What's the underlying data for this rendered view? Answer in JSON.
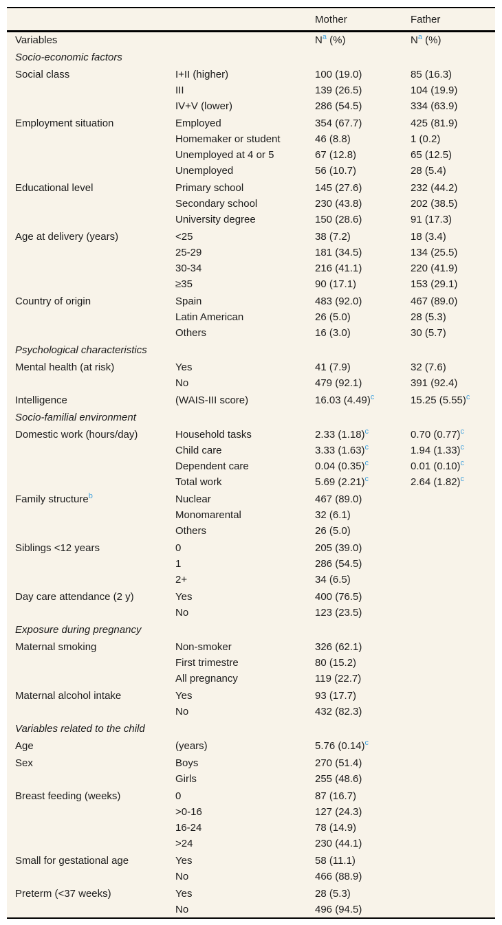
{
  "colors": {
    "table_background": "#f8f3e9",
    "rule": "#000000",
    "text": "#1b1b1b",
    "footnote_link_blue": "#45a3dd"
  },
  "table": {
    "columns": {
      "mother": "Mother",
      "father": "Father"
    },
    "subheader": {
      "variables": "Variables",
      "n": "N",
      "n_sup": "a",
      "pct": "(%)"
    },
    "rows": [
      {
        "type": "section",
        "label": "Socio-economic factors"
      },
      {
        "type": "data",
        "label": "Social class",
        "category": "I+II (higher)",
        "mother": "100 (19.0)",
        "father": "85 (16.3)"
      },
      {
        "type": "data",
        "label": "",
        "category": "III",
        "mother": "139 (26.5)",
        "father": "104 (19.9)"
      },
      {
        "type": "data",
        "label": "",
        "category": "IV+V (lower)",
        "mother": "286 (54.5)",
        "father": "334 (63.9)"
      },
      {
        "type": "data",
        "label": "Employment situation",
        "category": "Employed",
        "mother": "354 (67.7)",
        "father": "425 (81.9)"
      },
      {
        "type": "data",
        "label": "",
        "category": "Homemaker or student",
        "mother": "46 (8.8)",
        "father": "1 (0.2)"
      },
      {
        "type": "data",
        "label": "",
        "category": "Unemployed at 4 or 5",
        "mother": "67 (12.8)",
        "father": "65 (12.5)"
      },
      {
        "type": "data",
        "label": "",
        "category": "Unemployed",
        "mother": "56 (10.7)",
        "father": "28 (5.4)"
      },
      {
        "type": "data",
        "label": "Educational level",
        "category": "Primary school",
        "mother": "145 (27.6)",
        "father": "232 (44.2)"
      },
      {
        "type": "data",
        "label": "",
        "category": "Secondary school",
        "mother": "230 (43.8)",
        "father": "202 (38.5)"
      },
      {
        "type": "data",
        "label": "",
        "category": "University degree",
        "mother": "150 (28.6)",
        "father": "91 (17.3)"
      },
      {
        "type": "data",
        "label": "Age at delivery (years)",
        "category": "<25",
        "mother": "38 (7.2)",
        "father": "18 (3.4)"
      },
      {
        "type": "data",
        "label": "",
        "category": "25-29",
        "mother": "181 (34.5)",
        "father": "134 (25.5)"
      },
      {
        "type": "data",
        "label": "",
        "category": "30-34",
        "mother": "216 (41.1)",
        "father": "220 (41.9)"
      },
      {
        "type": "data",
        "label": "",
        "category": "≥35",
        "mother": "90 (17.1)",
        "father": "153 (29.1)"
      },
      {
        "type": "data",
        "label": "Country of origin",
        "category": "Spain",
        "mother": "483 (92.0)",
        "father": "467 (89.0)"
      },
      {
        "type": "data",
        "label": "",
        "category": "Latin American",
        "mother": "26 (5.0)",
        "father": "28 (5.3)"
      },
      {
        "type": "data",
        "label": "",
        "category": "Others",
        "mother": "16 (3.0)",
        "father": "30 (5.7)"
      },
      {
        "type": "section",
        "label": "Psychological characteristics"
      },
      {
        "type": "data",
        "label": "Mental health (at risk)",
        "category": "Yes",
        "mother": "41 (7.9)",
        "father": "32 (7.6)"
      },
      {
        "type": "data",
        "label": "",
        "category": "No",
        "mother": "479 (92.1)",
        "father": "391 (92.4)"
      },
      {
        "type": "data",
        "label": "Intelligence",
        "category": "(WAIS-III score)",
        "mother": "16.03 (4.49)",
        "mother_sup": "c",
        "father": "15.25 (5.55)",
        "father_sup": "c"
      },
      {
        "type": "section",
        "label": "Socio-familial environment"
      },
      {
        "type": "data",
        "label": "Domestic work (hours/day)",
        "category": "Household tasks",
        "mother": "2.33 (1.18)",
        "mother_sup": "c",
        "father": "0.70 (0.77)",
        "father_sup": "c"
      },
      {
        "type": "data",
        "label": "",
        "category": "Child care",
        "mother": "3.33 (1.63)",
        "mother_sup": "c",
        "father": "1.94 (1.33)",
        "father_sup": "c"
      },
      {
        "type": "data",
        "label": "",
        "category": "Dependent care",
        "mother": "0.04 (0.35)",
        "mother_sup": "c",
        "father": "0.01 (0.10)",
        "father_sup": "c"
      },
      {
        "type": "data",
        "label": "",
        "category": "Total work",
        "mother": "5.69 (2.21)",
        "mother_sup": "c",
        "father": "2.64 (1.82)",
        "father_sup": "c"
      },
      {
        "type": "data",
        "label": "Family structure",
        "label_sup": "b",
        "category": "Nuclear",
        "mother": "467 (89.0)",
        "father": ""
      },
      {
        "type": "data",
        "label": "",
        "category": "Monomarental",
        "mother": "32 (6.1)",
        "father": ""
      },
      {
        "type": "data",
        "label": "",
        "category": "Others",
        "mother": "26 (5.0)",
        "father": ""
      },
      {
        "type": "data",
        "label": "Siblings <12 years",
        "category": "0",
        "mother": "205 (39.0)",
        "father": ""
      },
      {
        "type": "data",
        "label": "",
        "category": "1",
        "mother": "286 (54.5)",
        "father": ""
      },
      {
        "type": "data",
        "label": "",
        "category": "2+",
        "mother": "34 (6.5)",
        "father": ""
      },
      {
        "type": "data",
        "label": "Day care attendance (2 y)",
        "category": "Yes",
        "mother": "400 (76.5)",
        "father": ""
      },
      {
        "type": "data",
        "label": "",
        "category": "No",
        "mother": "123 (23.5)",
        "father": ""
      },
      {
        "type": "section",
        "label": "Exposure during pregnancy"
      },
      {
        "type": "data",
        "label": "Maternal smoking",
        "category": "Non-smoker",
        "mother": "326 (62.1)",
        "father": ""
      },
      {
        "type": "data",
        "label": "",
        "category": "First trimestre",
        "mother": "80 (15.2)",
        "father": ""
      },
      {
        "type": "data",
        "label": "",
        "category": "All pregnancy",
        "mother": "119 (22.7)",
        "father": ""
      },
      {
        "type": "data",
        "label": "Maternal alcohol intake",
        "category": "Yes",
        "mother": "93 (17.7)",
        "father": ""
      },
      {
        "type": "data",
        "label": "",
        "category": "No",
        "mother": "432 (82.3)",
        "father": ""
      },
      {
        "type": "section",
        "label": "Variables related to the child"
      },
      {
        "type": "data",
        "label": "Age",
        "category": "(years)",
        "mother": "5.76 (0.14)",
        "mother_sup": "c",
        "father": ""
      },
      {
        "type": "data",
        "label": "Sex",
        "category": "Boys",
        "mother": "270 (51.4)",
        "father": ""
      },
      {
        "type": "data",
        "label": "",
        "category": "Girls",
        "mother": "255 (48.6)",
        "father": ""
      },
      {
        "type": "data",
        "label": "Breast feeding (weeks)",
        "category": "0",
        "mother": "87 (16.7)",
        "father": ""
      },
      {
        "type": "data",
        "label": "",
        "category": ">0-16",
        "mother": "127 (24.3)",
        "father": ""
      },
      {
        "type": "data",
        "label": "",
        "category": "16-24",
        "mother": "78 (14.9)",
        "father": ""
      },
      {
        "type": "data",
        "label": "",
        "category": ">24",
        "mother": "230 (44.1)",
        "father": ""
      },
      {
        "type": "data",
        "label": "Small for gestational age",
        "category": "Yes",
        "mother": "58 (11.1)",
        "father": ""
      },
      {
        "type": "data",
        "label": "",
        "category": "No",
        "mother": "466 (88.9)",
        "father": ""
      },
      {
        "type": "data",
        "label": "Preterm (<37 weeks)",
        "category": "Yes",
        "mother": "28 (5.3)",
        "father": ""
      },
      {
        "type": "data",
        "label": "",
        "category": "No",
        "mother": "496 (94.5)",
        "father": ""
      }
    ]
  }
}
